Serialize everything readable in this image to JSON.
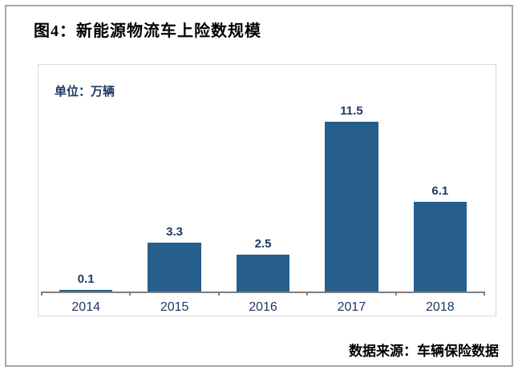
{
  "header": {
    "title": "图4：新能源物流车上险数规模"
  },
  "chart": {
    "unit_label": "单位：万辆",
    "source_label": "数据来源：车辆保险数据"
  },
  "colors": {
    "bar": "#265e8c",
    "label_text": "#1f3864",
    "axis": "#7f7f7f",
    "frame_border": "#a6a6a6",
    "chart_box_border": "#d9d9d9"
  },
  "chart_data": {
    "type": "bar",
    "title": "图4：新能源物流车上险数规模",
    "categories": [
      "2014",
      "2015",
      "2016",
      "2017",
      "2018"
    ],
    "values": [
      0.1,
      3.3,
      2.5,
      11.5,
      6.1
    ],
    "xlabel": "",
    "ylabel": "万辆",
    "ylim": [
      0,
      12
    ],
    "grid": false,
    "legend": false,
    "bar_color": "#265e8c",
    "data_labels": true,
    "source": "车辆保险数据"
  }
}
